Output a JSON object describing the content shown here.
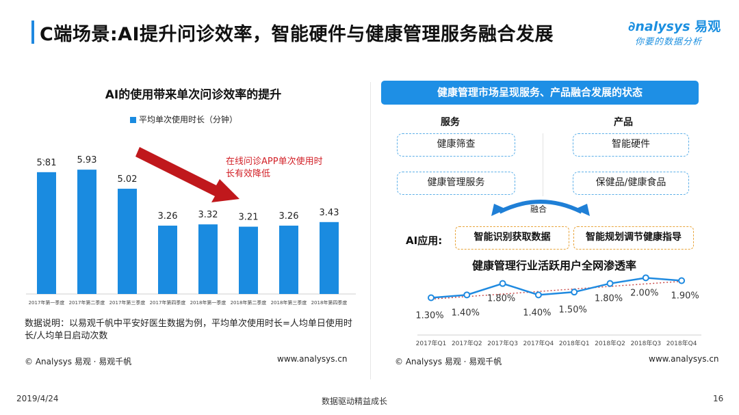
{
  "header": {
    "title": "C端场景:AI提升问诊效率，智能硬件与健康管理服务融合发展"
  },
  "logo": {
    "brand": "nalysys",
    "brand_cn": "易观",
    "tagline": "你要的数据分析"
  },
  "left_panel": {
    "data_note": "数据说明：以易观千帆中平安好医生数据为例，平均单次使用时长=人均单日使用时长/人均单日启动次数",
    "footer_left": "© Analysys 易观 · 易观千帆",
    "footer_url": "www.analysys.cn"
  },
  "right_panel": {
    "banner": "健康管理市场呈现服务、产品融合发展的状态",
    "service_head": "服务",
    "product_head": "产品",
    "service_items": [
      "健康筛查",
      "健康管理服务"
    ],
    "product_items": [
      "智能硬件",
      "保健品/健康食品"
    ],
    "merge_label": "融合",
    "ai_label": "AI应用:",
    "ai_items": [
      "智能识别获取数据",
      "智能规划调节健康指导"
    ],
    "line_title": "健康管理行业活跃用户全网渗透率",
    "footer_left": "© Analysys 易观 · 易观千帆",
    "footer_url": "www.analysys.cn"
  },
  "page": {
    "date": "2019/4/24",
    "slogan": "数据驱动精益成长",
    "number": "16"
  },
  "colors": {
    "accent": "#1f88e0",
    "bar": "#1a8be0",
    "arrow": "#c0181c",
    "annotation": "#d21f26",
    "ai_box_border": "#e8a43a",
    "box_border": "#5aaee8",
    "trend_dotted": "#c84b4b"
  },
  "chart_data": [
    {
      "type": "bar",
      "title": "AI的使用带来单次问诊效率的提升",
      "categories": [
        "2017年第一季度",
        "2017年第二季度",
        "2017年第三季度",
        "2017年第四季度",
        "2018年第一季度",
        "2018年第二季度",
        "2018年第三季度",
        "2018年第四季度"
      ],
      "series": [
        {
          "name": "平均单次使用时长（分钟）",
          "values": [
            5.81,
            5.93,
            5.02,
            3.26,
            3.32,
            3.21,
            3.26,
            3.43
          ]
        }
      ],
      "value_labels": [
        "5.81",
        "5.93",
        "5.02",
        "3.26",
        "3.32",
        "3.21",
        "3.26",
        "3.43"
      ],
      "ylim": [
        0,
        7.5
      ],
      "grid": false,
      "legend_position": "top",
      "annotation": "在线问诊APP单次使用时长有效降低",
      "annotation_lines": [
        "在线问诊APP单次使用时",
        "长有效降低"
      ]
    },
    {
      "type": "line",
      "title": "健康管理行业活跃用户全网渗透率",
      "categories": [
        "2017年Q1",
        "2017年Q2",
        "2017年Q3",
        "2017年Q4",
        "2018年Q1",
        "2018年Q2",
        "2018年Q3",
        "2018年Q4"
      ],
      "series": [
        {
          "values": [
            1.3,
            1.4,
            1.8,
            1.4,
            1.5,
            1.8,
            2.0,
            1.9
          ]
        }
      ],
      "value_labels": [
        "1.30%",
        "1.40%",
        "1.80%",
        "1.40%",
        "1.50%",
        "1.80%",
        "2.00%",
        "1.90%"
      ],
      "ylim": [
        1.0,
        2.2
      ],
      "trendline": "dotted",
      "grid": false
    }
  ]
}
